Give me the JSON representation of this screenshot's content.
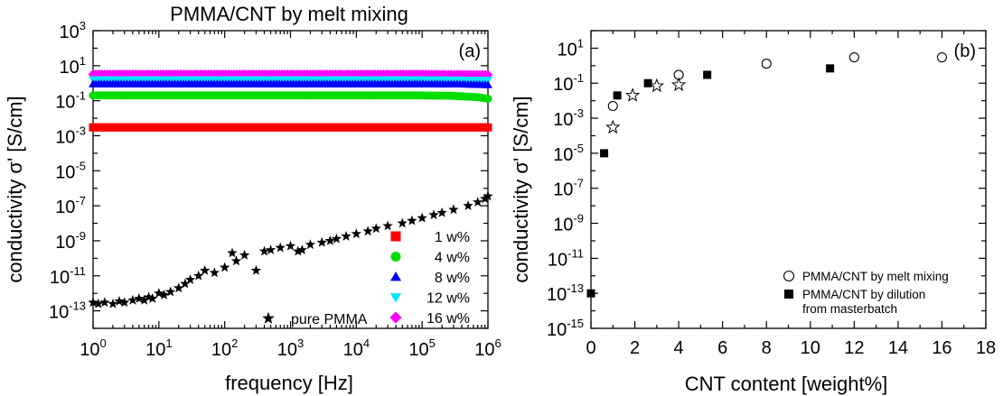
{
  "chart_data": [
    {
      "panel_id": "a",
      "title": "PMMA/CNT by melt mixing",
      "type": "scatter",
      "xlabel": "frequency [Hz]",
      "ylabel": "conductivity σ' [S/cm]",
      "xscale": "log",
      "yscale": "log",
      "xlim": [
        1,
        1000000
      ],
      "ylim": [
        1e-14,
        1000
      ],
      "panel_label": "(a)",
      "x_ticks": [
        {
          "base": "10",
          "exp": "0",
          "value": 1
        },
        {
          "base": "10",
          "exp": "1",
          "value": 10
        },
        {
          "base": "10",
          "exp": "2",
          "value": 100
        },
        {
          "base": "10",
          "exp": "3",
          "value": 1000
        },
        {
          "base": "10",
          "exp": "4",
          "value": 10000
        },
        {
          "base": "10",
          "exp": "5",
          "value": 100000
        },
        {
          "base": "10",
          "exp": "6",
          "value": 1000000
        }
      ],
      "y_ticks": [
        {
          "base": "10",
          "exp": "3",
          "value": 1000
        },
        {
          "base": "10",
          "exp": "1",
          "value": 10
        },
        {
          "base": "10",
          "exp": "-1",
          "value": 0.1
        },
        {
          "base": "10",
          "exp": "-3",
          "value": 0.001
        },
        {
          "base": "10",
          "exp": "-5",
          "value": 1e-05
        },
        {
          "base": "10",
          "exp": "-7",
          "value": 1e-07
        },
        {
          "base": "10",
          "exp": "-9",
          "value": 1e-09
        },
        {
          "base": "10",
          "exp": "-11",
          "value": 1e-11
        },
        {
          "base": "10",
          "exp": "-13",
          "value": 1e-13
        }
      ],
      "legend_position": "bottom-right",
      "series": [
        {
          "name": "1 w%",
          "marker": "square",
          "color": "#ff0000",
          "x": [
            1,
            10,
            100,
            1000,
            10000,
            100000,
            400000,
            1000000
          ],
          "y": [
            0.003,
            0.003,
            0.003,
            0.003,
            0.003,
            0.003,
            0.003,
            0.003
          ]
        },
        {
          "name": "4 w%",
          "marker": "circle",
          "color": "#00dd00",
          "x": [
            1,
            10,
            100,
            1000,
            10000,
            100000,
            300000,
            700000,
            1000000
          ],
          "y": [
            0.2,
            0.2,
            0.2,
            0.2,
            0.2,
            0.2,
            0.19,
            0.16,
            0.13
          ]
        },
        {
          "name": "8 w%",
          "marker": "triangle-up",
          "color": "#0000ff",
          "x": [
            1,
            10,
            100,
            1000,
            10000,
            100000,
            400000,
            1000000
          ],
          "y": [
            0.9,
            0.9,
            0.9,
            0.9,
            0.9,
            0.9,
            0.87,
            0.8
          ]
        },
        {
          "name": "12 w%",
          "marker": "triangle-down",
          "color": "#00e5ff",
          "x": [
            1,
            10,
            100,
            1000,
            10000,
            100000,
            400000,
            1000000
          ],
          "y": [
            1.6,
            1.6,
            1.6,
            1.6,
            1.6,
            1.6,
            1.55,
            1.5
          ]
        },
        {
          "name": "16 w%",
          "marker": "diamond",
          "color": "#ff00ff",
          "x": [
            1,
            10,
            100,
            1000,
            10000,
            100000,
            400000,
            1000000
          ],
          "y": [
            3.2,
            3.2,
            3.2,
            3.2,
            3.2,
            3.2,
            3.1,
            3.0
          ]
        },
        {
          "name": "pure PMMA",
          "marker": "star",
          "color": "#000000",
          "x": [
            1,
            1.2,
            1.5,
            2,
            2.5,
            3,
            4,
            5,
            6,
            7,
            8,
            10,
            12,
            15,
            20,
            25,
            30,
            40,
            50,
            70,
            100,
            130,
            150,
            200,
            300,
            400,
            500,
            700,
            1000,
            1300,
            1500,
            2000,
            3000,
            4000,
            5000,
            7000,
            10000,
            15000,
            20000,
            30000,
            50000,
            70000,
            100000,
            150000,
            200000,
            300000,
            500000,
            700000,
            900000,
            1000000
          ],
          "y": [
            3e-13,
            2.5e-13,
            3e-13,
            2.5e-13,
            3.5e-13,
            3e-13,
            4e-13,
            5e-13,
            4e-13,
            6e-13,
            5e-13,
            1e-12,
            8e-13,
            1.2e-12,
            2e-12,
            3.5e-12,
            6e-12,
            1e-11,
            2e-11,
            1.5e-11,
            3e-11,
            2e-10,
            7e-11,
            1.5e-10,
            2e-11,
            2.5e-10,
            3e-10,
            4e-10,
            5e-10,
            2.5e-10,
            3e-10,
            6e-10,
            8e-10,
            1e-09,
            1.3e-09,
            1.8e-09,
            2.5e-09,
            3.5e-09,
            5e-09,
            7e-09,
            1e-08,
            1.4e-08,
            2e-08,
            3e-08,
            4e-08,
            6e-08,
            1e-07,
            1.6e-07,
            2.5e-07,
            3.5e-07
          ]
        }
      ]
    },
    {
      "panel_id": "b",
      "type": "scatter",
      "xlabel": "CNT content [weight%]",
      "ylabel": "conductivity σ' [S/cm]",
      "xscale": "linear",
      "yscale": "log",
      "xlim": [
        0,
        18
      ],
      "ylim": [
        1e-15,
        100
      ],
      "panel_label": "(b)",
      "x_ticks": [
        "0",
        "2",
        "4",
        "6",
        "8",
        "10",
        "12",
        "14",
        "16",
        "18"
      ],
      "y_ticks": [
        {
          "base": "10",
          "exp": "1",
          "value": 10
        },
        {
          "base": "10",
          "exp": "-1",
          "value": 0.1
        },
        {
          "base": "10",
          "exp": "-3",
          "value": 0.001
        },
        {
          "base": "10",
          "exp": "-5",
          "value": 1e-05
        },
        {
          "base": "10",
          "exp": "-7",
          "value": 1e-07
        },
        {
          "base": "10",
          "exp": "-9",
          "value": 1e-09
        },
        {
          "base": "10",
          "exp": "-11",
          "value": 1e-11
        },
        {
          "base": "10",
          "exp": "-13",
          "value": 1e-13
        },
        {
          "base": "10",
          "exp": "-15",
          "value": 1e-15
        }
      ],
      "legend_position": "bottom-right",
      "series": [
        {
          "name": "PMMA/CNT by melt mixing",
          "marker": "open-circle",
          "color": "#000000",
          "x": [
            1,
            4,
            8,
            12,
            16
          ],
          "y": [
            0.005,
            0.3,
            1.3,
            3,
            3
          ]
        },
        {
          "name": "PMMA/CNT by dilution from masterbatch",
          "name_lines": [
            "PMMA/CNT by dilution",
            "from masterbatch"
          ],
          "marker": "filled-square",
          "color": "#000000",
          "x": [
            0,
            0.6,
            1.2,
            2.6,
            5.3,
            10.9
          ],
          "y": [
            1e-13,
            1e-05,
            0.02,
            0.1,
            0.3,
            0.7
          ]
        },
        {
          "name": "",
          "marker": "open-star",
          "color": "#000000",
          "x": [
            1,
            1.9,
            3,
            4
          ],
          "y": [
            0.0003,
            0.02,
            0.07,
            0.08
          ]
        }
      ]
    }
  ]
}
